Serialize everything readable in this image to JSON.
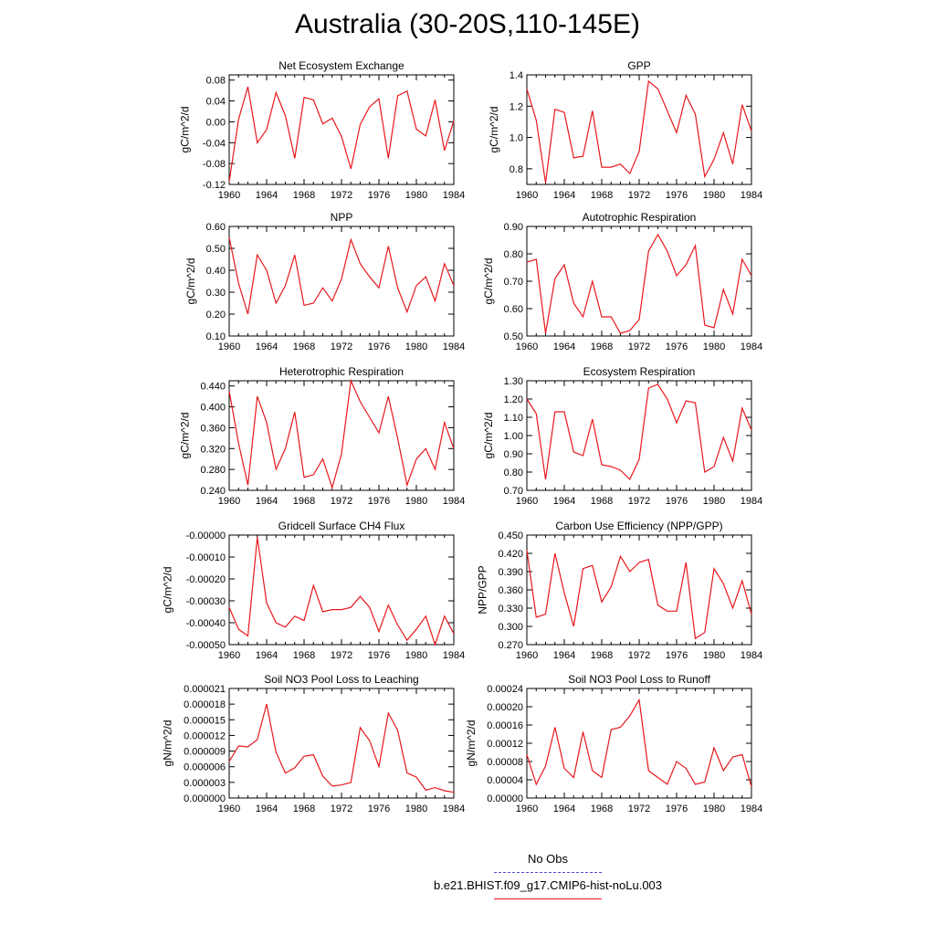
{
  "title": "Australia (30-20S,110-145E)",
  "line_color": "#e8181c",
  "obs_color": "#4b4bd6",
  "legend": {
    "obs_label": "No Obs",
    "model_label": "b.e21.BHIST.f09_g17.CMIP6-hist-noLu.003"
  },
  "chart_data": [
    {
      "type": "line",
      "title": "Net Ecosystem Exchange",
      "ylabel": "gC/m^2/d",
      "xlim": [
        1960,
        1984
      ],
      "ylim": [
        -0.12,
        0.09
      ],
      "xticks": [
        "1960",
        "1964",
        "1968",
        "1972",
        "1976",
        "1980",
        "1984"
      ],
      "yticks": [
        "0.08",
        "0.04",
        "0.00",
        "-0.04",
        "-0.08",
        "-0.12"
      ],
      "x": [
        1960,
        1961,
        1962,
        1963,
        1964,
        1965,
        1966,
        1967,
        1968,
        1969,
        1970,
        1971,
        1972,
        1973,
        1974,
        1975,
        1976,
        1977,
        1978,
        1979,
        1980,
        1981,
        1982,
        1983,
        1984
      ],
      "series": [
        {
          "values": [
            -0.115,
            0.005,
            0.067,
            -0.04,
            -0.015,
            0.056,
            0.012,
            -0.07,
            0.047,
            0.042,
            -0.004,
            0.007,
            -0.028,
            -0.09,
            -0.005,
            0.029,
            0.044,
            -0.07,
            0.05,
            0.059,
            -0.014,
            -0.027,
            0.042,
            -0.055,
            0.002
          ]
        }
      ]
    },
    {
      "type": "line",
      "title": "GPP",
      "ylabel": "gC/m^2/d",
      "xlim": [
        1960,
        1984
      ],
      "ylim": [
        0.7,
        1.4
      ],
      "xticks": [
        "1960",
        "1964",
        "1968",
        "1972",
        "1976",
        "1980",
        "1984"
      ],
      "yticks": [
        "1.4",
        "1.2",
        "1.0",
        "0.8"
      ],
      "x": [
        1960,
        1961,
        1962,
        1963,
        1964,
        1965,
        1966,
        1967,
        1968,
        1969,
        1970,
        1971,
        1972,
        1973,
        1974,
        1975,
        1976,
        1977,
        1978,
        1979,
        1980,
        1981,
        1982,
        1983,
        1984
      ],
      "series": [
        {
          "values": [
            1.31,
            1.11,
            0.71,
            1.18,
            1.16,
            0.87,
            0.88,
            1.17,
            0.81,
            0.81,
            0.83,
            0.77,
            0.91,
            1.36,
            1.31,
            1.17,
            1.03,
            1.27,
            1.15,
            0.75,
            0.86,
            1.03,
            0.83,
            1.21,
            1.04
          ]
        }
      ]
    },
    {
      "type": "line",
      "title": "NPP",
      "ylabel": "gC/m^2/d",
      "xlim": [
        1960,
        1984
      ],
      "ylim": [
        0.1,
        0.6
      ],
      "xticks": [
        "1960",
        "1964",
        "1968",
        "1972",
        "1976",
        "1980",
        "1984"
      ],
      "yticks": [
        "0.60",
        "0.50",
        "0.40",
        "0.30",
        "0.20",
        "0.10"
      ],
      "x": [
        1960,
        1961,
        1962,
        1963,
        1964,
        1965,
        1966,
        1967,
        1968,
        1969,
        1970,
        1971,
        1972,
        1973,
        1974,
        1975,
        1976,
        1977,
        1978,
        1979,
        1980,
        1981,
        1982,
        1983,
        1984
      ],
      "series": [
        {
          "values": [
            0.55,
            0.34,
            0.2,
            0.47,
            0.4,
            0.25,
            0.33,
            0.47,
            0.24,
            0.25,
            0.32,
            0.26,
            0.36,
            0.54,
            0.43,
            0.37,
            0.32,
            0.51,
            0.32,
            0.21,
            0.33,
            0.37,
            0.26,
            0.43,
            0.33
          ]
        }
      ]
    },
    {
      "type": "line",
      "title": "Autotrophic Respiration",
      "ylabel": "gC/m^2/d",
      "xlim": [
        1960,
        1984
      ],
      "ylim": [
        0.5,
        0.9
      ],
      "xticks": [
        "1960",
        "1964",
        "1968",
        "1972",
        "1976",
        "1980",
        "1984"
      ],
      "yticks": [
        "0.90",
        "0.80",
        "0.70",
        "0.60",
        "0.50"
      ],
      "x": [
        1960,
        1961,
        1962,
        1963,
        1964,
        1965,
        1966,
        1967,
        1968,
        1969,
        1970,
        1971,
        1972,
        1973,
        1974,
        1975,
        1976,
        1977,
        1978,
        1979,
        1980,
        1981,
        1982,
        1983,
        1984
      ],
      "series": [
        {
          "values": [
            0.77,
            0.78,
            0.51,
            0.71,
            0.76,
            0.62,
            0.57,
            0.7,
            0.57,
            0.57,
            0.51,
            0.52,
            0.56,
            0.81,
            0.87,
            0.81,
            0.72,
            0.76,
            0.83,
            0.54,
            0.53,
            0.67,
            0.58,
            0.78,
            0.72
          ]
        }
      ]
    },
    {
      "type": "line",
      "title": "Heterotrophic Respiration",
      "ylabel": "gC/m^2/d",
      "xlim": [
        1960,
        1984
      ],
      "ylim": [
        0.24,
        0.45
      ],
      "xticks": [
        "1960",
        "1964",
        "1968",
        "1972",
        "1976",
        "1980",
        "1984"
      ],
      "yticks": [
        "0.440",
        "0.400",
        "0.360",
        "0.320",
        "0.280",
        "0.240"
      ],
      "x": [
        1960,
        1961,
        1962,
        1963,
        1964,
        1965,
        1966,
        1967,
        1968,
        1969,
        1970,
        1971,
        1972,
        1973,
        1974,
        1975,
        1976,
        1977,
        1978,
        1979,
        1980,
        1981,
        1982,
        1983,
        1984
      ],
      "series": [
        {
          "values": [
            0.43,
            0.33,
            0.25,
            0.42,
            0.37,
            0.28,
            0.32,
            0.39,
            0.265,
            0.27,
            0.3,
            0.245,
            0.31,
            0.45,
            0.41,
            0.38,
            0.35,
            0.42,
            0.34,
            0.25,
            0.3,
            0.32,
            0.28,
            0.37,
            0.32
          ]
        }
      ]
    },
    {
      "type": "line",
      "title": "Ecosystem Respiration",
      "ylabel": "gC/m^2/d",
      "xlim": [
        1960,
        1984
      ],
      "ylim": [
        0.7,
        1.3
      ],
      "xticks": [
        "1960",
        "1964",
        "1968",
        "1972",
        "1976",
        "1980",
        "1984"
      ],
      "yticks": [
        "1.30",
        "1.20",
        "1.10",
        "1.00",
        "0.90",
        "0.80",
        "0.70"
      ],
      "x": [
        1960,
        1961,
        1962,
        1963,
        1964,
        1965,
        1966,
        1967,
        1968,
        1969,
        1970,
        1971,
        1972,
        1973,
        1974,
        1975,
        1976,
        1977,
        1978,
        1979,
        1980,
        1981,
        1982,
        1983,
        1984
      ],
      "series": [
        {
          "values": [
            1.2,
            1.12,
            0.76,
            1.13,
            1.13,
            0.91,
            0.89,
            1.09,
            0.84,
            0.83,
            0.81,
            0.76,
            0.87,
            1.26,
            1.28,
            1.2,
            1.07,
            1.19,
            1.18,
            0.8,
            0.83,
            0.99,
            0.86,
            1.15,
            1.03
          ]
        }
      ]
    },
    {
      "type": "line",
      "title": "Gridcell Surface CH4 Flux",
      "ylabel": "gC/m^2/d",
      "xlim": [
        1960,
        1984
      ],
      "ylim": [
        -0.0005,
        0.0
      ],
      "xticks": [
        "1960",
        "1964",
        "1968",
        "1972",
        "1976",
        "1980",
        "1984"
      ],
      "yticks": [
        "-0.00000",
        "-0.00010",
        "-0.00020",
        "-0.00030",
        "-0.00040",
        "-0.00050"
      ],
      "x": [
        1960,
        1961,
        1962,
        1963,
        1964,
        1965,
        1966,
        1967,
        1968,
        1969,
        1970,
        1971,
        1972,
        1973,
        1974,
        1975,
        1976,
        1977,
        1978,
        1979,
        1980,
        1981,
        1982,
        1983,
        1984
      ],
      "series": [
        {
          "values": [
            -0.00033,
            -0.00043,
            -0.00046,
            -1e-05,
            -0.00031,
            -0.0004,
            -0.00042,
            -0.00037,
            -0.00039,
            -0.00023,
            -0.00035,
            -0.00034,
            -0.00034,
            -0.00033,
            -0.00028,
            -0.00033,
            -0.00044,
            -0.00032,
            -0.00041,
            -0.00048,
            -0.00043,
            -0.00037,
            -0.0005,
            -0.00037,
            -0.00045
          ]
        }
      ]
    },
    {
      "type": "line",
      "title": "Carbon Use Efficiency (NPP/GPP)",
      "ylabel": "NPP/GPP",
      "xlim": [
        1960,
        1984
      ],
      "ylim": [
        0.27,
        0.45
      ],
      "xticks": [
        "1960",
        "1964",
        "1968",
        "1972",
        "1976",
        "1980",
        "1984"
      ],
      "yticks": [
        "0.450",
        "0.420",
        "0.390",
        "0.360",
        "0.330",
        "0.300",
        "0.270"
      ],
      "x": [
        1960,
        1961,
        1962,
        1963,
        1964,
        1965,
        1966,
        1967,
        1968,
        1969,
        1970,
        1971,
        1972,
        1973,
        1974,
        1975,
        1976,
        1977,
        1978,
        1979,
        1980,
        1981,
        1982,
        1983,
        1984
      ],
      "series": [
        {
          "values": [
            0.425,
            0.315,
            0.32,
            0.42,
            0.355,
            0.3,
            0.395,
            0.4,
            0.34,
            0.365,
            0.415,
            0.39,
            0.405,
            0.41,
            0.335,
            0.325,
            0.325,
            0.405,
            0.28,
            0.29,
            0.395,
            0.37,
            0.33,
            0.375,
            0.32
          ]
        }
      ]
    },
    {
      "type": "line",
      "title": "Soil NO3 Pool Loss to Leaching",
      "ylabel": "gN/m^2/d",
      "xlim": [
        1960,
        1984
      ],
      "ylim": [
        0.0,
        2.1e-05
      ],
      "xticks": [
        "1960",
        "1964",
        "1968",
        "1972",
        "1976",
        "1980",
        "1984"
      ],
      "yticks": [
        "0.000021",
        "0.000018",
        "0.000015",
        "0.000012",
        "0.000009",
        "0.000006",
        "0.000003",
        "0.000000"
      ],
      "x": [
        1960,
        1961,
        1962,
        1963,
        1964,
        1965,
        1966,
        1967,
        1968,
        1969,
        1970,
        1971,
        1972,
        1973,
        1974,
        1975,
        1976,
        1977,
        1978,
        1979,
        1980,
        1981,
        1982,
        1983,
        1984
      ],
      "series": [
        {
          "values": [
            7e-06,
            1e-05,
            9.8e-06,
            1.12e-05,
            1.8e-05,
            8.8e-06,
            4.8e-06,
            5.8e-06,
            8e-06,
            8.3e-06,
            4.2e-06,
            2.3e-06,
            2.5e-06,
            3e-06,
            1.35e-05,
            1.1e-05,
            6e-06,
            1.63e-05,
            1.3e-05,
            4.8e-06,
            4e-06,
            1.5e-06,
            2e-06,
            1.4e-06,
            1.1e-06
          ]
        }
      ]
    },
    {
      "type": "line",
      "title": "Soil NO3 Pool Loss to Runoff",
      "ylabel": "gN/m^2/d",
      "xlim": [
        1960,
        1984
      ],
      "ylim": [
        0.0,
        0.00024
      ],
      "xticks": [
        "1960",
        "1964",
        "1968",
        "1972",
        "1976",
        "1980",
        "1984"
      ],
      "yticks": [
        "0.00024",
        "0.00020",
        "0.00016",
        "0.00012",
        "0.00008",
        "0.00004",
        "0.00000"
      ],
      "x": [
        1960,
        1961,
        1962,
        1963,
        1964,
        1965,
        1966,
        1967,
        1968,
        1969,
        1970,
        1971,
        1972,
        1973,
        1974,
        1975,
        1976,
        1977,
        1978,
        1979,
        1980,
        1981,
        1982,
        1983,
        1984
      ],
      "series": [
        {
          "values": [
            9.5e-05,
            3e-05,
            7e-05,
            0.000155,
            6.5e-05,
            4.5e-05,
            0.000145,
            6e-05,
            4.5e-05,
            0.00015,
            0.000155,
            0.00018,
            0.000215,
            6e-05,
            4.5e-05,
            3e-05,
            8e-05,
            6.5e-05,
            3e-05,
            3.5e-05,
            0.00011,
            6e-05,
            9e-05,
            9.5e-05,
            2.5e-05
          ]
        }
      ]
    }
  ]
}
